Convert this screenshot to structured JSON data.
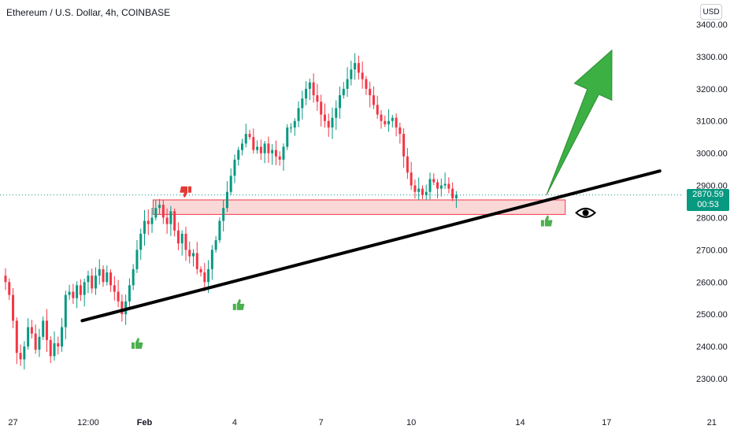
{
  "header": {
    "title": "Ethereum / U.S. Dollar, 4h, COINBASE",
    "currency": "USD"
  },
  "price_badge": {
    "last_price": "2870.59",
    "countdown": "00:53",
    "color": "#089981"
  },
  "colors": {
    "up": "#089981",
    "down": "#f23645",
    "zone_fill": "#f8cbcb",
    "zone_stroke": "#f23645",
    "trendline": "#000000",
    "arrow": "#3cb043",
    "thumb_up": "#4caf50",
    "thumb_down": "#e53935"
  },
  "icons": [
    "thumbs-up-icon",
    "thumbs-down-icon",
    "eye-icon",
    "up-arrow-icon"
  ],
  "chart_data": {
    "type": "candlestick",
    "symbol": "ETHUSD",
    "timeframe": "4h",
    "ylim": [
      2250,
      3450
    ],
    "y_ticks": [
      2300,
      2400,
      2500,
      2600,
      2700,
      2800,
      2900,
      3000,
      3100,
      3200,
      3300,
      3400
    ],
    "y_tick_labels": [
      "2300.00",
      "2400.00",
      "2500.00",
      "2600.00",
      "2700.00",
      "2800.00",
      "2900.00",
      "3000.00",
      "3100.00",
      "3200.00",
      "3300.00",
      "3400.00"
    ],
    "x_tick_labels": [
      "27",
      "12:00",
      "Feb",
      "4",
      "7",
      "10",
      "14",
      "17",
      "21"
    ],
    "x_tick_index": [
      2,
      22,
      37,
      61,
      84,
      108,
      137,
      160,
      188
    ],
    "last_price": 2870.59,
    "closes": [
      2600,
      2560,
      2480,
      2380,
      2360,
      2400,
      2460,
      2440,
      2390,
      2430,
      2480,
      2420,
      2370,
      2410,
      2400,
      2460,
      2560,
      2570,
      2550,
      2590,
      2560,
      2600,
      2620,
      2580,
      2620,
      2640,
      2600,
      2630,
      2590,
      2570,
      2540,
      2500,
      2540,
      2590,
      2640,
      2700,
      2750,
      2790,
      2780,
      2800,
      2830,
      2840,
      2800,
      2780,
      2820,
      2760,
      2720,
      2750,
      2700,
      2680,
      2690,
      2640,
      2630,
      2600,
      2640,
      2700,
      2730,
      2790,
      2830,
      2880,
      2930,
      2980,
      3010,
      3030,
      3060,
      3050,
      3010,
      3020,
      3000,
      3030,
      3000,
      3010,
      2990,
      2980,
      3020,
      3080,
      3080,
      3100,
      3140,
      3170,
      3200,
      3220,
      3180,
      3160,
      3120,
      3100,
      3080,
      3110,
      3140,
      3180,
      3200,
      3230,
      3260,
      3280,
      3250,
      3230,
      3200,
      3180,
      3150,
      3120,
      3100,
      3090,
      3100,
      3110,
      3080,
      3060,
      2990,
      2940,
      2900,
      2880,
      2890,
      2870,
      2880,
      2920,
      2910,
      2890,
      2900,
      2905,
      2890,
      2860,
      2870.59
    ],
    "trendline": [
      [
        20,
        2480
      ],
      [
        175,
        2945
      ]
    ],
    "supply_zone": {
      "start_index": 46,
      "end_index": 149,
      "low": 2810,
      "high": 2855
    },
    "projection_arrow": {
      "from": [
        144,
        2870
      ],
      "to": [
        161,
        3320
      ]
    },
    "markers": [
      {
        "type": "thumbs-down",
        "index": 48,
        "price": 2880
      },
      {
        "type": "thumbs-up",
        "index": 35,
        "price": 2410
      },
      {
        "type": "thumbs-up",
        "index": 62,
        "price": 2530
      },
      {
        "type": "thumbs-up",
        "index": 144,
        "price": 2790
      }
    ],
    "eye_marker": {
      "index": 154,
      "price": 2820
    }
  }
}
